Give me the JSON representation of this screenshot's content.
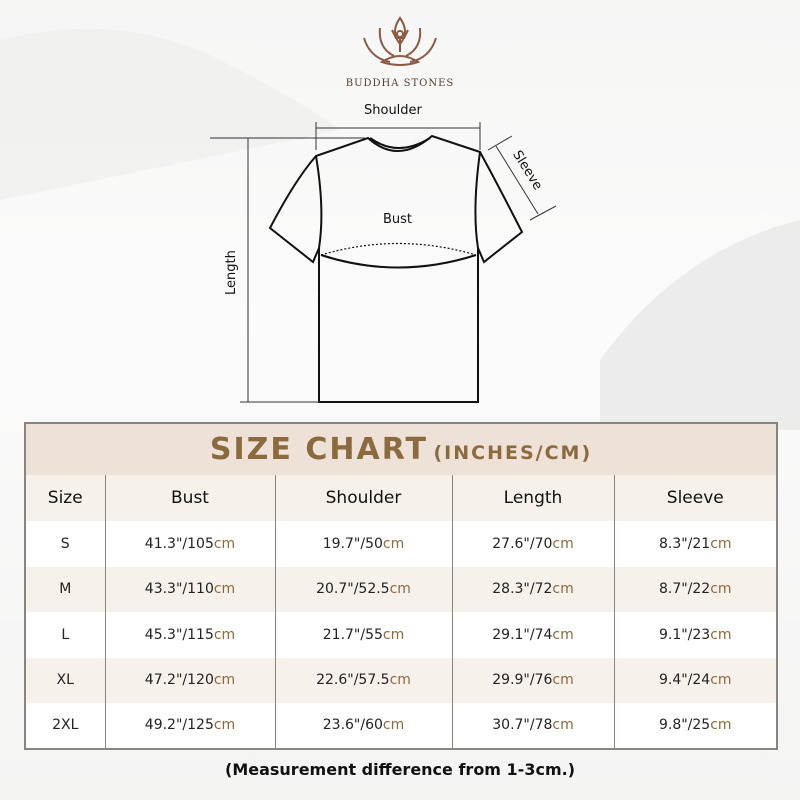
{
  "brand": {
    "name": "BUDDHA STONES",
    "logo_icon": "lotus-meditation-logo",
    "color": "#8b5a45"
  },
  "diagram": {
    "shoulder": "Shoulder",
    "sleeve": "Sleeve",
    "bust": "Bust",
    "length": "Length"
  },
  "chart": {
    "title": "SIZE CHART",
    "title_sub": "(INCHES/CM)",
    "accent": "#8b6a3e",
    "headers": [
      "Size",
      "Bust",
      "Shoulder",
      "Length",
      "Sleeve"
    ],
    "unit": "cm",
    "rows": [
      {
        "size": "S",
        "values": [
          "41.3\"/105",
          "19.7\"/50",
          "27.6\"/70",
          "8.3\"/21"
        ]
      },
      {
        "size": "M",
        "values": [
          "43.3\"/110",
          "20.7\"/52.5",
          "28.3\"/72",
          "8.7\"/22"
        ]
      },
      {
        "size": "L",
        "values": [
          "45.3\"/115",
          "21.7\"/55",
          "29.1\"/74",
          "9.1\"/23"
        ]
      },
      {
        "size": "XL",
        "values": [
          "47.2\"/120",
          "22.6\"/57.5",
          "29.9\"/76",
          "9.4\"/24"
        ]
      },
      {
        "size": "2XL",
        "values": [
          "49.2\"/125",
          "23.6\"/60",
          "30.7\"/78",
          "9.8\"/25"
        ]
      }
    ]
  },
  "note": "(Measurement difference from 1-3cm.)"
}
